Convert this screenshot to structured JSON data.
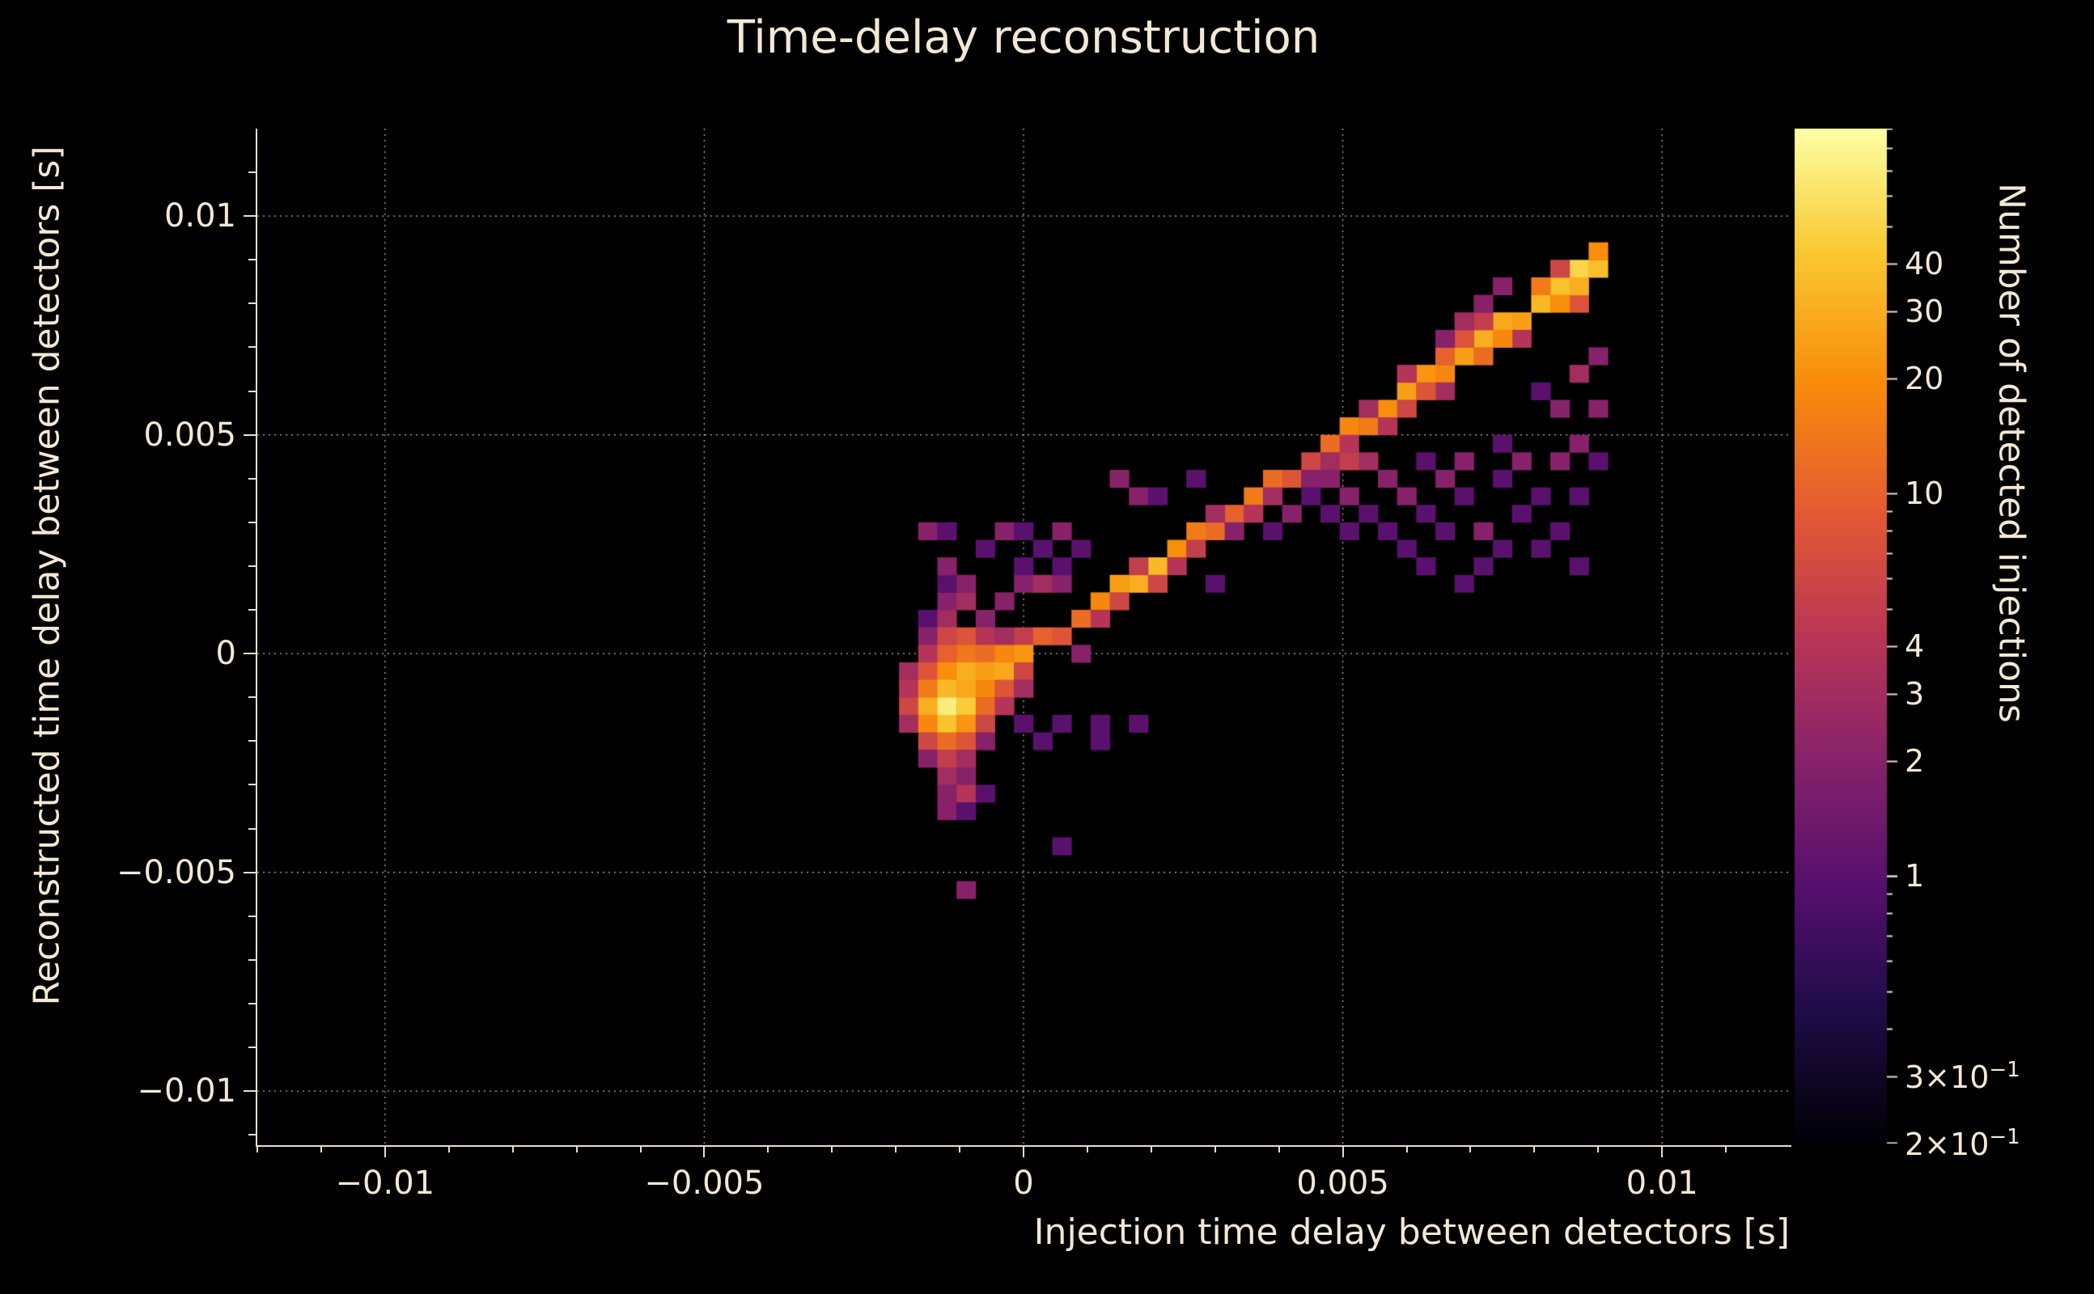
{
  "title": "Time-delay reconstruction",
  "xlabel": "Injection time delay between detectors [s]",
  "ylabel": "Reconstructed time delay between detectors [s]",
  "theme": {
    "background": "#000000",
    "text_color": "#f2e8d5",
    "axis_color": "#e9ddc7",
    "grid_color": "#e8dcc8"
  },
  "axes": {
    "x_range": [
      -0.012,
      0.012
    ],
    "y_range": [
      -0.0112,
      0.012
    ],
    "minor_step": 0.001,
    "grid": true,
    "x_major": [
      {
        "value": -0.01,
        "label": "−0.01"
      },
      {
        "value": -0.005,
        "label": "−0.005"
      },
      {
        "value": 0,
        "label": "0"
      },
      {
        "value": 0.005,
        "label": "0.005"
      },
      {
        "value": 0.01,
        "label": "0.01"
      }
    ],
    "y_major": [
      {
        "value": 0.01,
        "label": "0.01"
      },
      {
        "value": 0.005,
        "label": "0.005"
      },
      {
        "value": 0,
        "label": "0"
      },
      {
        "value": -0.005,
        "label": "−0.005"
      },
      {
        "value": -0.01,
        "label": "−0.01"
      }
    ]
  },
  "colorbar": {
    "label": "Number of detected injections",
    "scale": "log",
    "vmin": 0.2,
    "vmax": 90,
    "major_ticks": [
      {
        "value": 40,
        "label": "40",
        "sup": ""
      },
      {
        "value": 30,
        "label": "30",
        "sup": ""
      },
      {
        "value": 20,
        "label": "20",
        "sup": ""
      },
      {
        "value": 10,
        "label": "10",
        "sup": ""
      },
      {
        "value": 4,
        "label": "4",
        "sup": ""
      },
      {
        "value": 3,
        "label": "3",
        "sup": ""
      },
      {
        "value": 2,
        "label": "2",
        "sup": ""
      },
      {
        "value": 1,
        "label": "1",
        "sup": ""
      },
      {
        "value": 0.3,
        "label": "3×10",
        "sup": "−1"
      },
      {
        "value": 0.2,
        "label": "2×10",
        "sup": "−1"
      }
    ],
    "colormap": [
      [
        0.0,
        "#000004"
      ],
      [
        0.13,
        "#1f0c48"
      ],
      [
        0.25,
        "#550f6d"
      ],
      [
        0.38,
        "#88226a"
      ],
      [
        0.5,
        "#ba3655"
      ],
      [
        0.62,
        "#e35933"
      ],
      [
        0.75,
        "#f98c0a"
      ],
      [
        0.88,
        "#f9c932"
      ],
      [
        1.0,
        "#fcffa4"
      ]
    ]
  },
  "chart_data": {
    "type": "heatmap",
    "title": "Time-delay reconstruction",
    "xlabel": "Injection time delay between detectors [s]",
    "ylabel": "Reconstructed time delay between detectors [s]",
    "zlabel": "Number of detected injections",
    "zscale": "log",
    "zlim": [
      0.2,
      90
    ],
    "xlim": [
      -0.012,
      0.012
    ],
    "ylim": [
      -0.0112,
      0.012
    ],
    "bin_size_x": 0.0003,
    "bin_size_y": 0.0004,
    "bins": [
      [
        -0.0015,
        0.0008,
        1
      ],
      [
        -0.0012,
        0.0008,
        3
      ],
      [
        -0.0006,
        0.0008,
        2
      ],
      [
        -0.0015,
        0.0004,
        2
      ],
      [
        -0.0012,
        0.0004,
        6
      ],
      [
        -0.0009,
        0.0004,
        8
      ],
      [
        -0.0006,
        0.0004,
        4
      ],
      [
        -0.0003,
        0.0004,
        3
      ],
      [
        0.0,
        0.0004,
        5
      ],
      [
        -0.0015,
        0.0,
        4
      ],
      [
        -0.0012,
        0.0,
        10
      ],
      [
        -0.0009,
        0.0,
        14
      ],
      [
        -0.0006,
        0.0,
        12
      ],
      [
        -0.0003,
        0.0,
        18
      ],
      [
        0.0,
        0.0,
        22
      ],
      [
        0.0009,
        0.0,
        2
      ],
      [
        -0.0018,
        -0.0004,
        3
      ],
      [
        -0.0015,
        -0.0004,
        8
      ],
      [
        -0.0012,
        -0.0004,
        20
      ],
      [
        -0.0009,
        -0.0004,
        30
      ],
      [
        -0.0006,
        -0.0004,
        25
      ],
      [
        -0.0003,
        -0.0004,
        28
      ],
      [
        0.0,
        -0.0004,
        6
      ],
      [
        -0.0018,
        -0.0008,
        4
      ],
      [
        -0.0015,
        -0.0008,
        15
      ],
      [
        -0.0012,
        -0.0008,
        35
      ],
      [
        -0.0009,
        -0.0008,
        28
      ],
      [
        -0.0006,
        -0.0008,
        18
      ],
      [
        -0.0003,
        -0.0008,
        8
      ],
      [
        0.0,
        -0.0008,
        3
      ],
      [
        -0.0018,
        -0.0012,
        6
      ],
      [
        -0.0015,
        -0.0012,
        30
      ],
      [
        -0.0012,
        -0.0012,
        70
      ],
      [
        -0.0009,
        -0.0012,
        45
      ],
      [
        -0.0006,
        -0.0012,
        12
      ],
      [
        -0.0003,
        -0.0012,
        4
      ],
      [
        -0.0018,
        -0.0016,
        3
      ],
      [
        -0.0015,
        -0.0016,
        18
      ],
      [
        -0.0012,
        -0.0016,
        40
      ],
      [
        -0.0009,
        -0.0016,
        22
      ],
      [
        -0.0006,
        -0.0016,
        6
      ],
      [
        -0.0015,
        -0.002,
        6
      ],
      [
        -0.0012,
        -0.002,
        12
      ],
      [
        -0.0009,
        -0.002,
        8
      ],
      [
        -0.0006,
        -0.002,
        2
      ],
      [
        -0.0015,
        -0.0024,
        2
      ],
      [
        -0.0012,
        -0.0024,
        5
      ],
      [
        -0.0009,
        -0.0024,
        3
      ],
      [
        -0.0012,
        -0.0028,
        3
      ],
      [
        -0.0009,
        -0.0028,
        2
      ],
      [
        -0.0012,
        -0.0032,
        2
      ],
      [
        -0.0009,
        -0.0032,
        4
      ],
      [
        -0.0006,
        -0.0032,
        1
      ],
      [
        -0.0012,
        -0.0036,
        2
      ],
      [
        -0.0009,
        -0.0036,
        1
      ],
      [
        -0.0009,
        -0.0054,
        2
      ],
      [
        0.0006,
        -0.0044,
        1
      ],
      [
        -0.0012,
        0.0012,
        2
      ],
      [
        -0.0009,
        0.0012,
        3
      ],
      [
        -0.0003,
        0.0012,
        2
      ],
      [
        -0.0012,
        0.0016,
        1
      ],
      [
        -0.0009,
        0.0016,
        2
      ],
      [
        0.0,
        0.0016,
        2
      ],
      [
        0.0003,
        0.0016,
        3
      ],
      [
        0.0006,
        0.0016,
        2
      ],
      [
        -0.0012,
        0.002,
        2
      ],
      [
        0.0,
        0.002,
        1
      ],
      [
        0.0006,
        0.002,
        1
      ],
      [
        -0.0006,
        0.0024,
        1
      ],
      [
        0.0003,
        0.0024,
        1
      ],
      [
        0.0009,
        0.0024,
        1
      ],
      [
        -0.0015,
        0.0028,
        2
      ],
      [
        -0.0012,
        0.0028,
        1
      ],
      [
        -0.0003,
        0.0028,
        2
      ],
      [
        0.0,
        0.0028,
        1
      ],
      [
        0.0006,
        0.0028,
        2
      ],
      [
        0.0,
        -0.0016,
        1
      ],
      [
        0.0006,
        -0.0016,
        1
      ],
      [
        0.0012,
        -0.0016,
        1
      ],
      [
        0.0018,
        -0.0016,
        1
      ],
      [
        0.0003,
        -0.002,
        1
      ],
      [
        0.0012,
        -0.002,
        1
      ],
      [
        0.0003,
        0.0004,
        10
      ],
      [
        0.0006,
        0.0004,
        8
      ],
      [
        0.0009,
        0.0008,
        12
      ],
      [
        0.0012,
        0.0012,
        18
      ],
      [
        0.0015,
        0.0016,
        25
      ],
      [
        0.0018,
        0.0016,
        30
      ],
      [
        0.0021,
        0.002,
        35
      ],
      [
        0.0024,
        0.0024,
        20
      ],
      [
        0.0027,
        0.0028,
        15
      ],
      [
        0.003,
        0.0028,
        12
      ],
      [
        0.0033,
        0.0032,
        10
      ],
      [
        0.0036,
        0.0036,
        15
      ],
      [
        0.0039,
        0.004,
        12
      ],
      [
        0.0042,
        0.004,
        8
      ],
      [
        0.0045,
        0.0044,
        6
      ],
      [
        0.0048,
        0.0048,
        12
      ],
      [
        0.0051,
        0.0052,
        18
      ],
      [
        0.0054,
        0.0052,
        15
      ],
      [
        0.0057,
        0.0056,
        20
      ],
      [
        0.006,
        0.006,
        25
      ],
      [
        0.0063,
        0.0064,
        22
      ],
      [
        0.0066,
        0.0064,
        18
      ],
      [
        0.0069,
        0.0068,
        25
      ],
      [
        0.0072,
        0.0072,
        30
      ],
      [
        0.0075,
        0.0076,
        28
      ],
      [
        0.0078,
        0.0076,
        25
      ],
      [
        0.0081,
        0.008,
        35
      ],
      [
        0.0084,
        0.0084,
        40
      ],
      [
        0.0087,
        0.0088,
        50
      ],
      [
        0.009,
        0.0088,
        38
      ],
      [
        0.0012,
        0.0008,
        4
      ],
      [
        0.0015,
        0.0012,
        6
      ],
      [
        0.0018,
        0.002,
        5
      ],
      [
        0.0021,
        0.0016,
        6
      ],
      [
        0.0024,
        0.002,
        4
      ],
      [
        0.0027,
        0.0024,
        5
      ],
      [
        0.003,
        0.0032,
        3
      ],
      [
        0.0033,
        0.0028,
        2
      ],
      [
        0.0036,
        0.0032,
        4
      ],
      [
        0.0039,
        0.0036,
        3
      ],
      [
        0.0045,
        0.004,
        2
      ],
      [
        0.0048,
        0.0044,
        3
      ],
      [
        0.0051,
        0.0048,
        4
      ],
      [
        0.0054,
        0.0056,
        3
      ],
      [
        0.006,
        0.0064,
        4
      ],
      [
        0.0066,
        0.006,
        3
      ],
      [
        0.0072,
        0.0076,
        5
      ],
      [
        0.0078,
        0.0072,
        4
      ],
      [
        0.0084,
        0.0088,
        6
      ],
      [
        0.0087,
        0.008,
        8
      ],
      [
        0.0087,
        0.0084,
        30
      ],
      [
        0.009,
        0.0092,
        20
      ],
      [
        0.0084,
        0.008,
        20
      ],
      [
        0.0081,
        0.0084,
        15
      ],
      [
        0.0075,
        0.0072,
        18
      ],
      [
        0.0072,
        0.0068,
        12
      ],
      [
        0.0069,
        0.0072,
        8
      ],
      [
        0.0066,
        0.0068,
        10
      ],
      [
        0.0063,
        0.006,
        8
      ],
      [
        0.006,
        0.0056,
        6
      ],
      [
        0.0057,
        0.0052,
        4
      ],
      [
        0.0015,
        0.004,
        2
      ],
      [
        0.0018,
        0.0036,
        2
      ],
      [
        0.0021,
        0.0036,
        1
      ],
      [
        0.0027,
        0.004,
        1
      ],
      [
        0.0066,
        0.0072,
        2
      ],
      [
        0.0069,
        0.0076,
        3
      ],
      [
        0.0072,
        0.008,
        2
      ],
      [
        0.0075,
        0.0084,
        2
      ],
      [
        0.0045,
        0.0036,
        1
      ],
      [
        0.0048,
        0.0032,
        1
      ],
      [
        0.0051,
        0.0036,
        2
      ],
      [
        0.0051,
        0.0028,
        1
      ],
      [
        0.0054,
        0.0032,
        1
      ],
      [
        0.0057,
        0.004,
        2
      ],
      [
        0.0057,
        0.0028,
        1
      ],
      [
        0.006,
        0.0036,
        2
      ],
      [
        0.006,
        0.0024,
        1
      ],
      [
        0.0063,
        0.0032,
        1
      ],
      [
        0.0063,
        0.002,
        1
      ],
      [
        0.0066,
        0.004,
        2
      ],
      [
        0.0066,
        0.0028,
        1
      ],
      [
        0.0069,
        0.0036,
        1
      ],
      [
        0.0069,
        0.0016,
        1
      ],
      [
        0.0072,
        0.0028,
        2
      ],
      [
        0.0072,
        0.002,
        1
      ],
      [
        0.0075,
        0.004,
        1
      ],
      [
        0.0075,
        0.0024,
        1
      ],
      [
        0.0078,
        0.0032,
        1
      ],
      [
        0.0078,
        0.0044,
        2
      ],
      [
        0.0081,
        0.0036,
        1
      ],
      [
        0.0081,
        0.0024,
        1
      ],
      [
        0.0084,
        0.0044,
        2
      ],
      [
        0.0084,
        0.0028,
        1
      ],
      [
        0.0087,
        0.0036,
        1
      ],
      [
        0.0087,
        0.0048,
        2
      ],
      [
        0.009,
        0.0044,
        1
      ],
      [
        0.0087,
        0.002,
        1
      ],
      [
        0.0084,
        0.0056,
        2
      ],
      [
        0.0087,
        0.0064,
        3
      ],
      [
        0.0081,
        0.006,
        1
      ],
      [
        0.009,
        0.0056,
        2
      ],
      [
        0.009,
        0.0068,
        2
      ],
      [
        0.0075,
        0.0048,
        1
      ],
      [
        0.0069,
        0.0044,
        2
      ],
      [
        0.0063,
        0.0044,
        1
      ],
      [
        0.0054,
        0.0044,
        3
      ],
      [
        0.0051,
        0.0044,
        5
      ],
      [
        0.0048,
        0.004,
        2
      ],
      [
        0.0042,
        0.0032,
        2
      ],
      [
        0.0039,
        0.0028,
        1
      ],
      [
        0.003,
        0.0016,
        1
      ]
    ]
  }
}
